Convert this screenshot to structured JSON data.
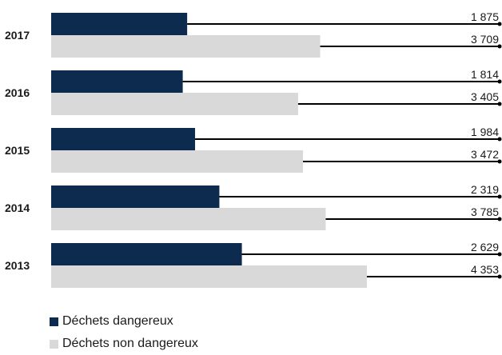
{
  "chart_data": {
    "type": "bar",
    "orientation": "horizontal",
    "categories": [
      "2017",
      "2016",
      "2015",
      "2014",
      "2013"
    ],
    "series": [
      {
        "name": "Déchets dangereux",
        "values": [
          1875,
          1814,
          1984,
          2319,
          2629
        ],
        "labels": [
          "1 875",
          "1 814",
          "1 984",
          "2 319",
          "2 629"
        ],
        "color": "#0c2b4e"
      },
      {
        "name": "Déchets non dangereux",
        "values": [
          3709,
          3405,
          3472,
          3785,
          4353
        ],
        "labels": [
          "3 709",
          "3 405",
          "3 472",
          "3 785",
          "4 353"
        ],
        "color": "#d9d9d9"
      }
    ],
    "xlim": [
      0,
      4353
    ],
    "legend_position": "bottom-left",
    "grid": false
  }
}
